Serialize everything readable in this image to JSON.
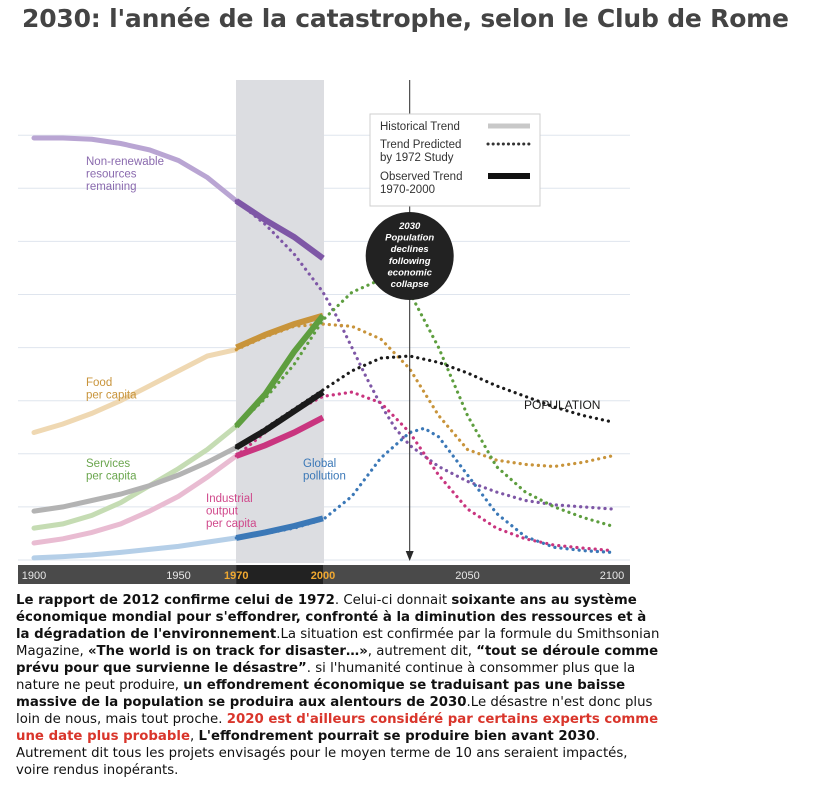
{
  "title": "2030: l'année de la catastrophe, selon le Club de Rome",
  "chart_data": {
    "type": "line",
    "x_ticks": [
      {
        "label": "1900",
        "value": 1900
      },
      {
        "label": "1950",
        "value": 1950
      },
      {
        "label": "1970",
        "value": 1970,
        "highlight": true
      },
      {
        "label": "2000",
        "value": 2000,
        "highlight": true
      },
      {
        "label": "2050",
        "value": 2050
      },
      {
        "label": "2100",
        "value": 2100
      }
    ],
    "xlim": [
      1900,
      2100
    ],
    "ylim": [
      0,
      1
    ],
    "shaded_period": [
      1970,
      2000
    ],
    "marker_year": 2030,
    "grid": true,
    "legend": {
      "position": "top-right",
      "entries": [
        {
          "label": "Historical Trend",
          "style": "historical"
        },
        {
          "label": "Trend Predicted by 1972 Study",
          "lines": [
            "Trend Predicted",
            "by 1972 Study"
          ],
          "style": "predicted"
        },
        {
          "label": "Observed Trend 1970-2000",
          "lines": [
            "Observed Trend",
            "1970-2000"
          ],
          "style": "observed"
        }
      ]
    },
    "annotation": {
      "lines": [
        "2030",
        "Population",
        "declines",
        "following",
        "economic",
        "collapse"
      ]
    },
    "series": [
      {
        "name": "Non-renewable resources remaining",
        "label_lines": [
          "Non-renewable",
          "resources",
          "remaining"
        ],
        "color": "#7e57a6",
        "historical_color": "#b9a5d3",
        "historical": [
          [
            1900,
            0.993
          ],
          [
            1910,
            0.993
          ],
          [
            1920,
            0.99
          ],
          [
            1930,
            0.98
          ],
          [
            1940,
            0.965
          ],
          [
            1950,
            0.94
          ],
          [
            1960,
            0.9
          ],
          [
            1970,
            0.845
          ]
        ],
        "predicted": [
          [
            1970,
            0.845
          ],
          [
            1980,
            0.79
          ],
          [
            1990,
            0.72
          ],
          [
            2000,
            0.63
          ],
          [
            2005,
            0.57
          ],
          [
            2010,
            0.5
          ],
          [
            2015,
            0.43
          ],
          [
            2020,
            0.365
          ],
          [
            2025,
            0.31
          ],
          [
            2030,
            0.27
          ],
          [
            2040,
            0.22
          ],
          [
            2050,
            0.185
          ],
          [
            2060,
            0.16
          ],
          [
            2070,
            0.14
          ],
          [
            2080,
            0.13
          ],
          [
            2090,
            0.125
          ],
          [
            2100,
            0.12
          ]
        ],
        "observed": [
          [
            1970,
            0.845
          ],
          [
            1980,
            0.8
          ],
          [
            1990,
            0.76
          ],
          [
            2000,
            0.71
          ]
        ]
      },
      {
        "name": "Food per capita",
        "label_lines": [
          "Food",
          "per capita"
        ],
        "color": "#c8943b",
        "historical_color": "#efd8b2",
        "historical": [
          [
            1900,
            0.3
          ],
          [
            1910,
            0.32
          ],
          [
            1920,
            0.345
          ],
          [
            1930,
            0.375
          ],
          [
            1940,
            0.41
          ],
          [
            1950,
            0.445
          ],
          [
            1960,
            0.48
          ],
          [
            1970,
            0.495
          ]
        ],
        "predicted": [
          [
            1970,
            0.495
          ],
          [
            1980,
            0.525
          ],
          [
            1990,
            0.55
          ],
          [
            2000,
            0.555
          ],
          [
            2010,
            0.55
          ],
          [
            2020,
            0.52
          ],
          [
            2030,
            0.45
          ],
          [
            2040,
            0.34
          ],
          [
            2050,
            0.26
          ],
          [
            2060,
            0.235
          ],
          [
            2070,
            0.225
          ],
          [
            2080,
            0.22
          ],
          [
            2090,
            0.23
          ],
          [
            2100,
            0.245
          ]
        ],
        "observed": [
          [
            1970,
            0.5
          ],
          [
            1980,
            0.53
          ],
          [
            1990,
            0.555
          ],
          [
            2000,
            0.575
          ]
        ]
      },
      {
        "name": "Services per capita",
        "label_lines": [
          "Services",
          "per capita"
        ],
        "color": "#5e9e3f",
        "historical_color": "#c5dcb3",
        "historical": [
          [
            1900,
            0.075
          ],
          [
            1910,
            0.085
          ],
          [
            1920,
            0.105
          ],
          [
            1930,
            0.135
          ],
          [
            1940,
            0.175
          ],
          [
            1950,
            0.215
          ],
          [
            1960,
            0.26
          ],
          [
            1970,
            0.315
          ]
        ],
        "predicted": [
          [
            1970,
            0.315
          ],
          [
            1980,
            0.38
          ],
          [
            1990,
            0.46
          ],
          [
            2000,
            0.565
          ],
          [
            2010,
            0.63
          ],
          [
            2020,
            0.66
          ],
          [
            2025,
            0.66
          ],
          [
            2030,
            0.63
          ],
          [
            2040,
            0.5
          ],
          [
            2050,
            0.34
          ],
          [
            2060,
            0.22
          ],
          [
            2070,
            0.16
          ],
          [
            2080,
            0.125
          ],
          [
            2090,
            0.1
          ],
          [
            2100,
            0.08
          ]
        ],
        "observed": [
          [
            1970,
            0.315
          ],
          [
            1980,
            0.39
          ],
          [
            1990,
            0.49
          ],
          [
            2000,
            0.575
          ]
        ]
      },
      {
        "name": "POPULATION",
        "color": "#1b1b1b",
        "historical_color": "#b3b3b3",
        "historical": [
          [
            1900,
            0.115
          ],
          [
            1910,
            0.125
          ],
          [
            1920,
            0.14
          ],
          [
            1930,
            0.155
          ],
          [
            1940,
            0.175
          ],
          [
            1950,
            0.2
          ],
          [
            1960,
            0.23
          ],
          [
            1970,
            0.265
          ]
        ],
        "predicted": [
          [
            1970,
            0.265
          ],
          [
            1980,
            0.31
          ],
          [
            1990,
            0.355
          ],
          [
            2000,
            0.4
          ],
          [
            2010,
            0.445
          ],
          [
            2020,
            0.475
          ],
          [
            2030,
            0.48
          ],
          [
            2040,
            0.465
          ],
          [
            2050,
            0.44
          ],
          [
            2060,
            0.41
          ],
          [
            2070,
            0.385
          ],
          [
            2080,
            0.36
          ],
          [
            2090,
            0.34
          ],
          [
            2100,
            0.325
          ]
        ],
        "observed": [
          [
            1970,
            0.265
          ],
          [
            1980,
            0.305
          ],
          [
            1990,
            0.35
          ],
          [
            2000,
            0.395
          ]
        ]
      },
      {
        "name": "Industrial output per capita",
        "label_lines": [
          "Industrial",
          "output",
          "per capita"
        ],
        "color": "#c9357f",
        "historical_color": "#e9bcd2",
        "historical": [
          [
            1900,
            0.04
          ],
          [
            1910,
            0.05
          ],
          [
            1920,
            0.065
          ],
          [
            1930,
            0.085
          ],
          [
            1940,
            0.115
          ],
          [
            1950,
            0.15
          ],
          [
            1960,
            0.195
          ],
          [
            1970,
            0.245
          ]
        ],
        "predicted": [
          [
            1970,
            0.245
          ],
          [
            1980,
            0.3
          ],
          [
            1990,
            0.35
          ],
          [
            2000,
            0.385
          ],
          [
            2010,
            0.395
          ],
          [
            2020,
            0.37
          ],
          [
            2030,
            0.3
          ],
          [
            2040,
            0.2
          ],
          [
            2050,
            0.12
          ],
          [
            2060,
            0.075
          ],
          [
            2070,
            0.05
          ],
          [
            2080,
            0.035
          ],
          [
            2090,
            0.028
          ],
          [
            2100,
            0.022
          ]
        ],
        "observed": [
          [
            1970,
            0.245
          ],
          [
            1980,
            0.27
          ],
          [
            1990,
            0.3
          ],
          [
            2000,
            0.335
          ]
        ]
      },
      {
        "name": "Global pollution",
        "label_lines": [
          "Global",
          "pollution"
        ],
        "color": "#3b78b7",
        "historical_color": "#b5cfe8",
        "historical": [
          [
            1900,
            0.005
          ],
          [
            1910,
            0.008
          ],
          [
            1920,
            0.012
          ],
          [
            1930,
            0.018
          ],
          [
            1940,
            0.025
          ],
          [
            1950,
            0.032
          ],
          [
            1960,
            0.042
          ],
          [
            1970,
            0.052
          ]
        ],
        "predicted": [
          [
            1970,
            0.052
          ],
          [
            1980,
            0.062
          ],
          [
            1990,
            0.075
          ],
          [
            2000,
            0.095
          ],
          [
            2010,
            0.15
          ],
          [
            2020,
            0.24
          ],
          [
            2030,
            0.3
          ],
          [
            2035,
            0.31
          ],
          [
            2040,
            0.29
          ],
          [
            2050,
            0.2
          ],
          [
            2060,
            0.11
          ],
          [
            2070,
            0.055
          ],
          [
            2080,
            0.03
          ],
          [
            2090,
            0.022
          ],
          [
            2100,
            0.018
          ]
        ],
        "observed": [
          [
            1970,
            0.052
          ],
          [
            1980,
            0.065
          ],
          [
            1990,
            0.08
          ],
          [
            2000,
            0.098
          ]
        ]
      }
    ]
  },
  "article": {
    "p1_bold": "Le rapport de 2012 confirme celui de 1972",
    "p2": ". Celui-ci donnait ",
    "p3_bold": "soixante ans au système économique mondial pour s'effondrer, confronté à la diminution des ressources et à la dégradation de l'environnement",
    "p4": ".La situation est confirmée par la formule du Smithsonian Magazine, ",
    "p5_bold": "«The world is on track for disaster…»",
    "p6": ", autrement dit, ",
    "p7_bold": "“tout se déroule comme prévu pour que survienne le désastre”",
    "p8": ". si l'humanité continue à consommer plus que la nature ne peut produire, ",
    "p9_bold": "un effondrement économique se traduisant pas une baisse massive de la population se produira aux alentours de 2030",
    "p10": ".Le désastre n'est donc plus loin de nous, mais tout proche. ",
    "p11_red": "2020 est d'ailleurs considéré par certains experts comme une date plus probable",
    "p12": ", ",
    "p13_bold": "L'effondrement pourrait se produire bien avant 2030",
    "p14": ". Autrement dit tous les projets envisagés pour le moyen terme de 10 ans seraient impactés, voire rendus inopérants."
  }
}
